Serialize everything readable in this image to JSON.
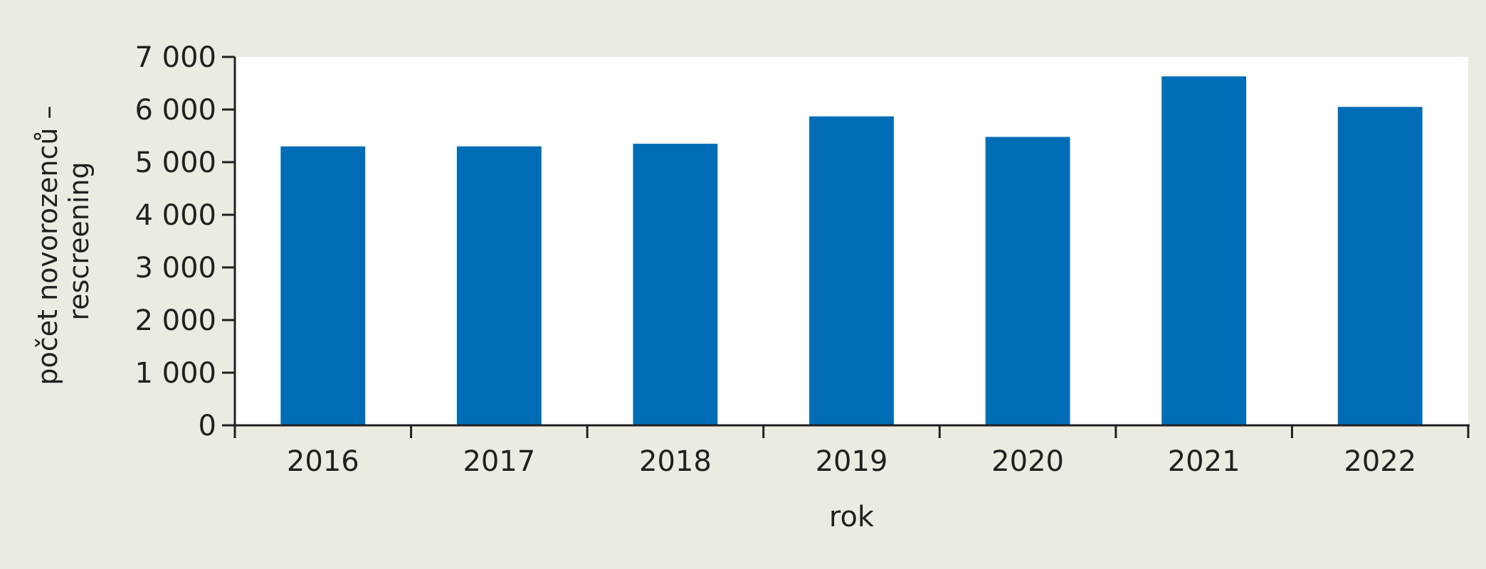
{
  "chart_data": {
    "type": "bar",
    "categories": [
      "2016",
      "2017",
      "2018",
      "2019",
      "2020",
      "2021",
      "2022"
    ],
    "values": [
      5300,
      5300,
      5350,
      5870,
      5480,
      6630,
      6050
    ],
    "xlabel": "rok",
    "ylabel": "počet novorozenců – rescreening",
    "ylabel_lines": [
      "počet novorozenců –",
      "rescreening"
    ],
    "ylim": [
      0,
      7000
    ],
    "yticks": [
      0,
      1000,
      2000,
      3000,
      4000,
      5000,
      6000,
      7000
    ],
    "ytick_labels": [
      "0",
      "1 000",
      "2 000",
      "3 000",
      "4 000",
      "5 000",
      "6 000",
      "7 000"
    ],
    "grid": false,
    "bar_color": "#006db6",
    "plot_background": "#ffffff",
    "page_background": "#ecebe1"
  }
}
